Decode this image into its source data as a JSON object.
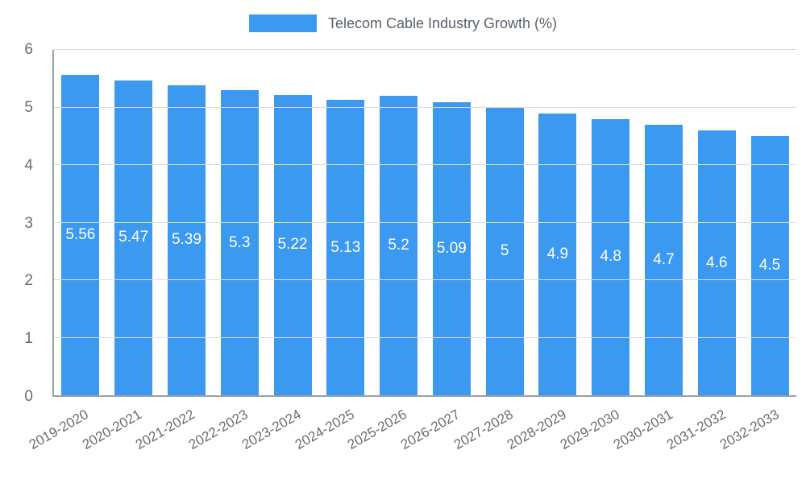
{
  "chart_data": {
    "type": "bar",
    "title": "Telecom Cable Industry Growth (%)",
    "categories": [
      "2019-2020",
      "2020-2021",
      "2021-2022",
      "2022-2023",
      "2023-2024",
      "2024-2025",
      "2025-2026",
      "2026-2027",
      "2027-2028",
      "2028-2029",
      "2029-2030",
      "2030-2031",
      "2031-2032",
      "2032-2033"
    ],
    "values": [
      5.56,
      5.47,
      5.39,
      5.3,
      5.22,
      5.13,
      5.2,
      5.09,
      5,
      4.9,
      4.8,
      4.7,
      4.6,
      4.5
    ],
    "xlabel": "",
    "ylabel": "",
    "ylim": [
      0,
      6
    ],
    "ytick_step": 1,
    "grid": true,
    "legend_position": "top",
    "bar_color": "#3b99f0",
    "value_label_color": "#ffffff",
    "axis_text_color": "#6b6b6b",
    "gridline_color": "#dcdcdc"
  }
}
